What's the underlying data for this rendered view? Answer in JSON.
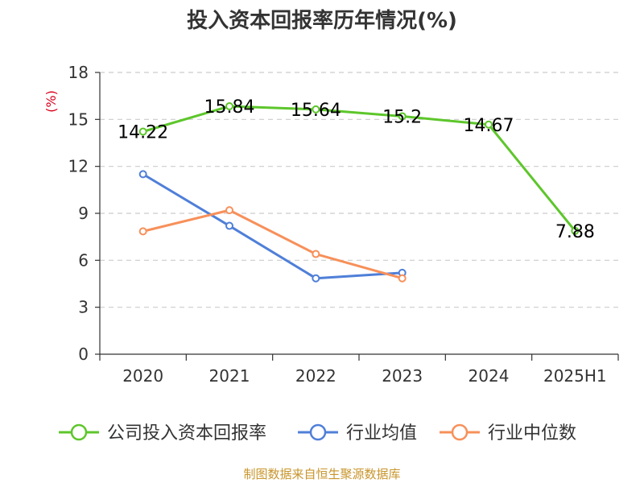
{
  "chart_data": {
    "type": "line",
    "title": "投入资本回报率历年情况(%)",
    "unit_label": "(%)",
    "categories": [
      "2020",
      "2021",
      "2022",
      "2023",
      "2024",
      "2025H1"
    ],
    "ylim": [
      0,
      18
    ],
    "yticks": [
      0,
      3,
      6,
      9,
      12,
      15,
      18
    ],
    "grid": true,
    "legend_position": "bottom",
    "series": [
      {
        "name": "公司投入资本回报率",
        "color": "#5dc62b",
        "values": [
          14.22,
          15.84,
          15.64,
          15.2,
          14.67,
          7.88
        ],
        "data_labels": [
          "14.22",
          "15.84",
          "15.64",
          "15.2",
          "14.67",
          "7.88"
        ]
      },
      {
        "name": "行业均值",
        "color": "#4f7fd8",
        "values": [
          11.5,
          8.2,
          4.85,
          5.2,
          null,
          null
        ]
      },
      {
        "name": "行业中位数",
        "color": "#f7905a",
        "values": [
          7.85,
          9.2,
          6.4,
          4.85,
          null,
          null
        ]
      }
    ]
  },
  "source_text": "制图数据来自恒生聚源数据库",
  "colors": {
    "unit": "#d9001b",
    "source": "#c8952c",
    "axis": "#333333",
    "grid": "#cccccc"
  }
}
